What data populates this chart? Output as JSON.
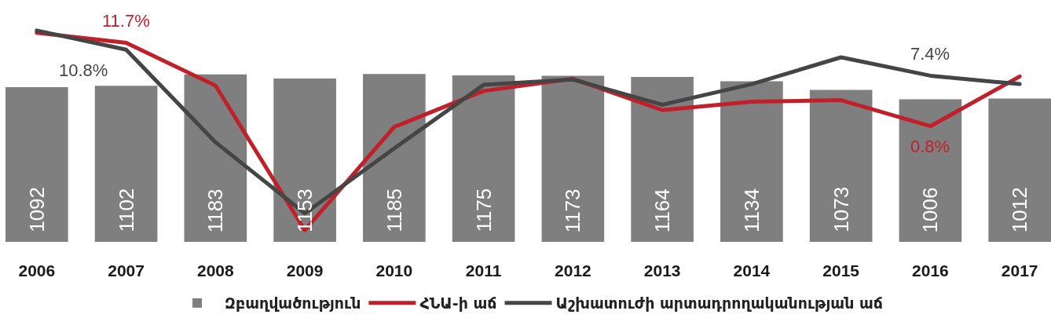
{
  "chart_data": {
    "type": "bar",
    "categories": [
      "2006",
      "2007",
      "2008",
      "2009",
      "2010",
      "2011",
      "2012",
      "2013",
      "2014",
      "2015",
      "2016",
      "2017"
    ],
    "tick_labels": "x",
    "legend": "bottom",
    "line_style": "solid",
    "series": [
      {
        "name": "Զբաղվածություն",
        "color": "#7e7f7e",
        "data_labels": true,
        "values": [
          1092,
          1102,
          1183,
          1153,
          1185,
          1175,
          1173,
          1164,
          1134,
          1073,
          1006,
          1012
        ]
      },
      {
        "name": "ՀՆԱ-ի աճ",
        "type": "line",
        "axis": "y2",
        "color": "#c1202b",
        "values": [
          13.0,
          11.7,
          6.1,
          -12.8,
          0.7,
          5.4,
          7.0,
          2.9,
          4.0,
          4.2,
          0.8,
          7.3
        ],
        "value_labels": [
          null,
          "11.7%",
          null,
          null,
          null,
          null,
          null,
          null,
          null,
          null,
          "0.8%",
          null
        ]
      },
      {
        "name": "Աշխատուժի արտադրողականության աճ",
        "type": "line",
        "axis": "y2",
        "color": "#454545",
        "values": [
          13.3,
          10.8,
          -1.3,
          -10.6,
          -2.1,
          6.2,
          6.9,
          3.6,
          6.3,
          9.8,
          7.4,
          6.3
        ],
        "value_labels": [
          null,
          "10.8%",
          null,
          null,
          null,
          null,
          null,
          null,
          null,
          null,
          "7.4%",
          null
        ]
      }
    ]
  }
}
